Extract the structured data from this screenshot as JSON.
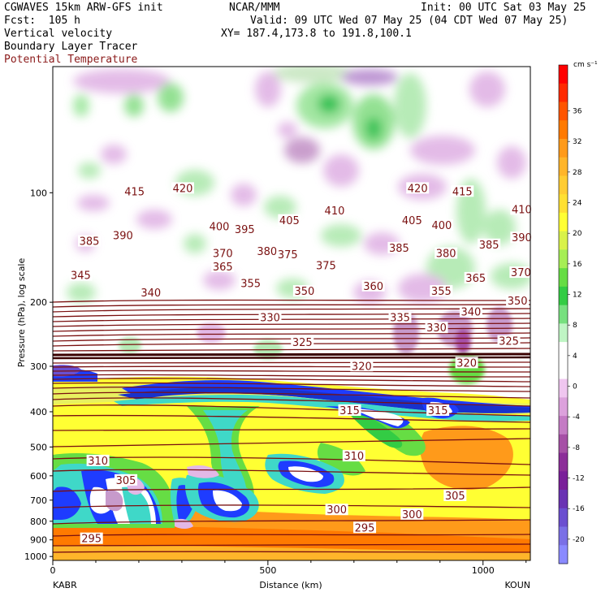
{
  "header": {
    "model": "CGWAVES 15km ARW-GFS init",
    "fcst": "Fcst:  105 h",
    "field1": "Vertical velocity",
    "field2": "Boundary Layer Tracer",
    "field3": "Potential Temperature",
    "org": "NCAR/MMM",
    "init": "Init: 00 UTC Sat 03 May 25",
    "valid": "Valid: 09 UTC Wed 07 May 25 (04 CDT Wed 07 May 25)",
    "xy": "XY= 187.4,173.8 to 191.8,100.1"
  },
  "colors": {
    "contour": "#7a1010",
    "theta_title": "#8b1a1a"
  },
  "chart_data": {
    "type": "cross-section",
    "xlabel": "Distance (km)",
    "ylabel": "Pressure (hPa), log scale",
    "x_start_label": "KABR",
    "x_end_label": "KOUN",
    "xlim": [
      0,
      1110
    ],
    "ylim_hpa": [
      1025,
      45
    ],
    "x_ticks": [
      0,
      500,
      1000
    ],
    "y_ticks": [
      100,
      200,
      300,
      400,
      500,
      600,
      700,
      800,
      900,
      1000
    ],
    "colorbar": {
      "unit": "cm s⁻¹",
      "tick_labels": [
        "36",
        "32",
        "28",
        "24",
        "20",
        "16",
        "12",
        "8",
        "4",
        "0",
        "-4",
        "-8",
        "-12",
        "-16",
        "-20"
      ],
      "bands": [
        "#ff0000",
        "#ff2a00",
        "#ff5500",
        "#ff7a00",
        "#ff9a1a",
        "#ffb52a",
        "#ffcc33",
        "#ffe033",
        "#ffff33",
        "#d9f24a",
        "#a6ee55",
        "#66dd44",
        "#33cc44",
        "#77e07f",
        "#bff5c4",
        "#ffffff",
        "#ffffff",
        "#f0c6f0",
        "#dca1dc",
        "#c47bc4",
        "#a650a6",
        "#8c2e99",
        "#7a1f99",
        "#6a33b3",
        "#6b4fd0",
        "#7a70e6",
        "#8a8aff"
      ]
    },
    "theta_labels": [
      {
        "p": 100,
        "x": 190,
        "text": "415"
      },
      {
        "p": 98,
        "x": 302,
        "text": "420"
      },
      {
        "p": 98,
        "x": 848,
        "text": "420"
      },
      {
        "p": 100,
        "x": 952,
        "text": "415"
      },
      {
        "p": 112,
        "x": 1090,
        "text": "410"
      },
      {
        "p": 120,
        "x": 550,
        "text": "405"
      },
      {
        "p": 113,
        "x": 655,
        "text": "410"
      },
      {
        "p": 120,
        "x": 835,
        "text": "405"
      },
      {
        "p": 124,
        "x": 904,
        "text": "400"
      },
      {
        "p": 125,
        "x": 387,
        "text": "400"
      },
      {
        "p": 127,
        "x": 446,
        "text": "395"
      },
      {
        "p": 137,
        "x": 85,
        "text": "385"
      },
      {
        "p": 132,
        "x": 163,
        "text": "390"
      },
      {
        "p": 134,
        "x": 1090,
        "text": "390"
      },
      {
        "p": 140,
        "x": 1014,
        "text": "385"
      },
      {
        "p": 143,
        "x": 805,
        "text": "385"
      },
      {
        "p": 146,
        "x": 498,
        "text": "380"
      },
      {
        "p": 148,
        "x": 914,
        "text": "380"
      },
      {
        "p": 148,
        "x": 395,
        "text": "370"
      },
      {
        "p": 149,
        "x": 546,
        "text": "375"
      },
      {
        "p": 160,
        "x": 635,
        "text": "375"
      },
      {
        "p": 161,
        "x": 395,
        "text": "365"
      },
      {
        "p": 167,
        "x": 1088,
        "text": "370"
      },
      {
        "p": 173,
        "x": 983,
        "text": "365"
      },
      {
        "p": 170,
        "x": 65,
        "text": "345"
      },
      {
        "p": 179,
        "x": 460,
        "text": "355"
      },
      {
        "p": 182,
        "x": 745,
        "text": "360"
      },
      {
        "p": 188,
        "x": 903,
        "text": "355"
      },
      {
        "p": 188,
        "x": 585,
        "text": "350"
      },
      {
        "p": 190,
        "x": 228,
        "text": "340"
      },
      {
        "p": 200,
        "x": 1080,
        "text": "350"
      },
      {
        "p": 214,
        "x": 972,
        "text": "340"
      },
      {
        "p": 222,
        "x": 505,
        "text": "330"
      },
      {
        "p": 222,
        "x": 807,
        "text": "335"
      },
      {
        "p": 237,
        "x": 892,
        "text": "330"
      },
      {
        "p": 260,
        "x": 580,
        "text": "325"
      },
      {
        "p": 258,
        "x": 1060,
        "text": "325"
      },
      {
        "p": 296,
        "x": 962,
        "text": "320"
      },
      {
        "p": 302,
        "x": 718,
        "text": "320"
      },
      {
        "p": 400,
        "x": 690,
        "text": "315"
      },
      {
        "p": 400,
        "x": 895,
        "text": "315"
      },
      {
        "p": 534,
        "x": 700,
        "text": "310"
      },
      {
        "p": 550,
        "x": 105,
        "text": "310"
      },
      {
        "p": 622,
        "x": 170,
        "text": "305"
      },
      {
        "p": 686,
        "x": 935,
        "text": "305"
      },
      {
        "p": 750,
        "x": 660,
        "text": "300"
      },
      {
        "p": 772,
        "x": 835,
        "text": "300"
      },
      {
        "p": 840,
        "x": 725,
        "text": "295"
      },
      {
        "p": 900,
        "x": 90,
        "text": "295"
      }
    ]
  }
}
